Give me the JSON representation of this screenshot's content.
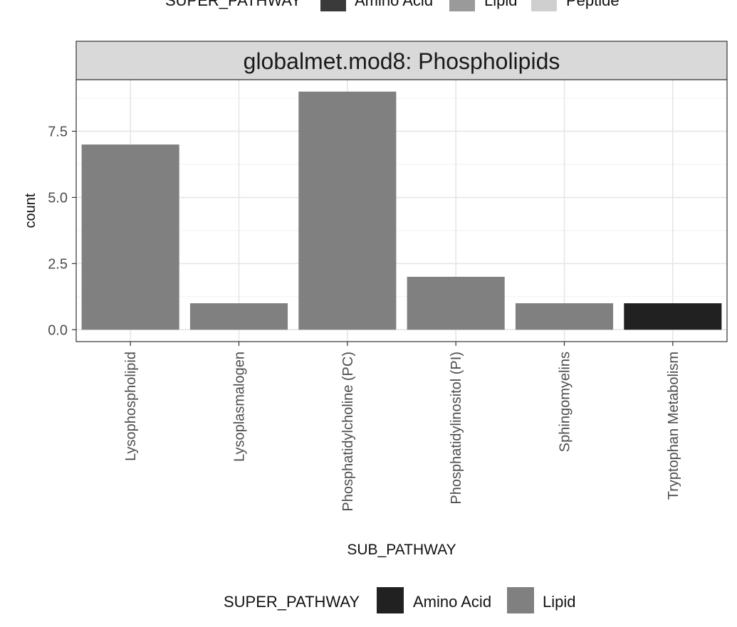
{
  "top_legend": {
    "title": "SUPER_PATHWAY",
    "entries": [
      {
        "label": "Amino Acid",
        "color": "#3a3a3a"
      },
      {
        "label": "Lipid",
        "color": "#9a9a9a"
      },
      {
        "label": "Peptide",
        "color": "#cfcfcf"
      }
    ]
  },
  "bottom_legend": {
    "title": "SUPER_PATHWAY",
    "entries": [
      {
        "label": "Amino Acid",
        "color": "#212121"
      },
      {
        "label": "Lipid",
        "color": "#808080"
      }
    ]
  },
  "chart_data": {
    "type": "bar",
    "title": "globalmet.mod8: Phospholipids",
    "xlabel": "SUB_PATHWAY",
    "ylabel": "count",
    "categories": [
      "Lysophospholipid",
      "Lysoplasmalogen",
      "Phosphatidylcholine (PC)",
      "Phosphatidylinositol (PI)",
      "Sphingomyelins",
      "Tryptophan Metabolism"
    ],
    "values": [
      7,
      1,
      9,
      2,
      1,
      1
    ],
    "fill_group": [
      "Lipid",
      "Lipid",
      "Lipid",
      "Lipid",
      "Lipid",
      "Amino Acid"
    ],
    "colors": {
      "Lipid": "#808080",
      "Amino Acid": "#212121"
    },
    "ylim": [
      -0.45,
      9.45
    ],
    "yticks": [
      0.0,
      2.5,
      5.0,
      7.5
    ],
    "ytick_labels": [
      "0.0",
      "2.5",
      "5.0",
      "7.5"
    ],
    "grid": true,
    "legend": "bottom"
  }
}
